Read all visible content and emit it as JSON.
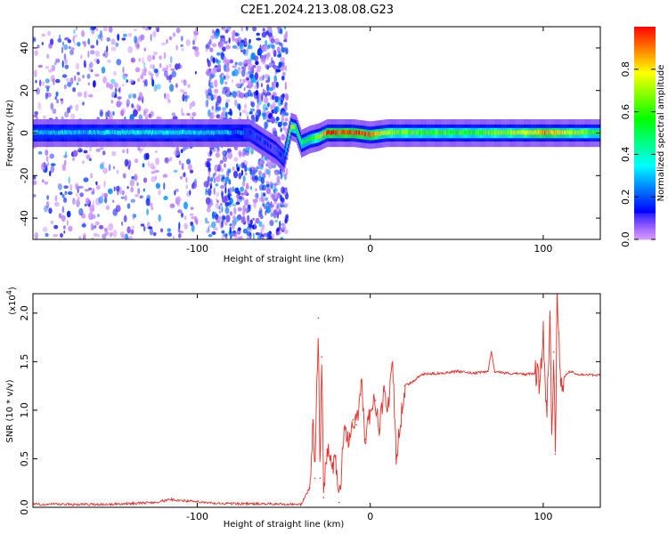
{
  "figure": {
    "title": "C2E1.2024.213.08.08.G23"
  },
  "chart_data": [
    {
      "type": "heatmap",
      "xlabel": "Height of straight line (km)",
      "ylabel": "Frequency (Hz)",
      "xlim": [
        -195,
        133
      ],
      "ylim": [
        -50,
        50
      ],
      "xticks": [
        -100,
        0,
        100
      ],
      "yticks": [
        -40,
        -20,
        0,
        20,
        40
      ],
      "colorbar": {
        "label": "Normalized spectral amplitude",
        "range": [
          0,
          1
        ],
        "ticks": [
          "0.0",
          "0.2",
          "0.4",
          "0.6",
          "0.8"
        ]
      },
      "ridge": {
        "x": [
          -195,
          -170,
          -140,
          -110,
          -90,
          -70,
          -55,
          -50,
          -46,
          -43,
          -40,
          -35,
          -30,
          -25,
          -20,
          -10,
          0,
          10,
          30,
          60,
          90,
          100,
          110,
          133
        ],
        "frequency": [
          0,
          0,
          0,
          0,
          0,
          0,
          -8,
          -12,
          3,
          2,
          -5,
          -3,
          -2,
          0,
          0,
          0,
          -1,
          0,
          0,
          0,
          0,
          0,
          0,
          0
        ],
        "amplitude": [
          0.3,
          0.3,
          0.35,
          0.35,
          0.3,
          0.2,
          0.15,
          0.2,
          0.8,
          0.6,
          0.5,
          0.55,
          0.7,
          0.95,
          0.95,
          0.95,
          0.9,
          0.7,
          0.6,
          0.6,
          0.75,
          0.9,
          0.8,
          0.55
        ]
      },
      "scatter_regions": [
        {
          "x_range": [
            -195,
            -100
          ],
          "density": "moderate"
        },
        {
          "x_range": [
            -95,
            -48
          ],
          "density": "high"
        }
      ]
    },
    {
      "type": "line",
      "xlabel": "Height of straight line (km)",
      "ylabel": "SNR (10 * v/v)",
      "y_multiplier": "(x10",
      "y_multiplier_exp": "4",
      "y_multiplier_close": ")",
      "xlim": [
        -195,
        133
      ],
      "ylim": [
        0,
        2.2
      ],
      "xticks": [
        -100,
        0,
        100
      ],
      "yticks": [
        "0.0",
        "0.5",
        "1.0",
        "1.5",
        "2.0"
      ],
      "color": "#e8302a",
      "series": [
        {
          "x": [
            -195,
            -150,
            -125,
            -115,
            -90,
            -40,
            -35,
            -33,
            -32,
            -30,
            -29,
            -28,
            -27,
            -25,
            -22,
            -20,
            -18,
            -15,
            -12,
            -10,
            -8,
            -5,
            -3,
            0,
            3,
            5,
            8,
            10,
            13,
            15,
            20,
            25,
            30,
            40,
            50,
            60,
            68,
            70,
            72,
            80,
            90,
            95,
            98,
            100,
            102,
            104,
            105,
            106,
            107,
            108,
            110,
            115,
            120,
            133
          ],
          "y": [
            0.03,
            0.03,
            0.05,
            0.08,
            0.04,
            0.03,
            0.2,
            0.9,
            0.3,
            1.95,
            0.3,
            1.55,
            0.1,
            0.6,
            0.4,
            0.5,
            0.05,
            0.8,
            0.7,
            0.9,
            0.85,
            1.3,
            0.7,
            1.0,
            1.1,
            0.8,
            1.2,
            1.0,
            1.45,
            0.5,
            1.25,
            1.3,
            1.37,
            1.38,
            1.4,
            1.38,
            1.4,
            1.6,
            1.4,
            1.38,
            1.37,
            1.38,
            1.3,
            1.8,
            1.0,
            1.95,
            0.8,
            1.6,
            0.55,
            2.15,
            1.3,
            1.4,
            1.37,
            1.36
          ]
        }
      ]
    }
  ]
}
